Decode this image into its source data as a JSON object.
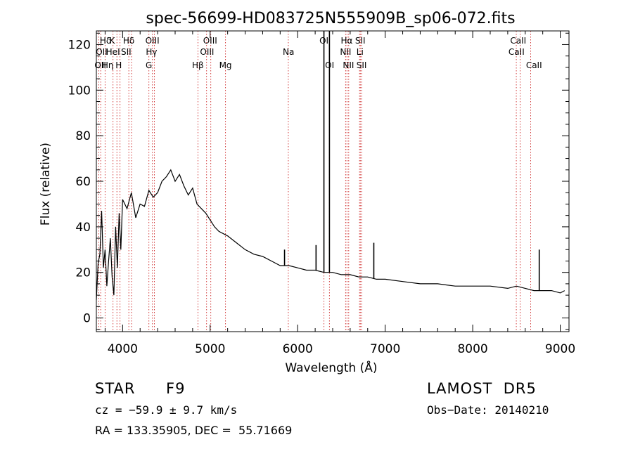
{
  "chart_data": {
    "type": "line",
    "title": "spec-56699-HD083725N555909B_sp06-072.fits",
    "xlabel": "Wavelength (Å)",
    "ylabel": "Flux (relative)",
    "xlim": [
      3700,
      9100
    ],
    "ylim": [
      -6,
      126
    ],
    "x_ticks": [
      4000,
      5000,
      6000,
      7000,
      8000,
      9000
    ],
    "y_ticks": [
      0,
      20,
      40,
      60,
      80,
      100,
      120
    ],
    "grid": false,
    "spectrum": {
      "x": [
        3700,
        3720,
        3740,
        3760,
        3780,
        3800,
        3820,
        3840,
        3860,
        3880,
        3900,
        3920,
        3940,
        3960,
        3980,
        4000,
        4050,
        4100,
        4150,
        4200,
        4250,
        4300,
        4350,
        4400,
        4450,
        4500,
        4550,
        4600,
        4650,
        4700,
        4750,
        4800,
        4850,
        4900,
        4950,
        5000,
        5050,
        5100,
        5200,
        5300,
        5400,
        5500,
        5600,
        5700,
        5800,
        5900,
        6000,
        6100,
        6200,
        6300,
        6400,
        6500,
        6600,
        6700,
        6800,
        6900,
        7000,
        7200,
        7400,
        7600,
        7800,
        8000,
        8200,
        8400,
        8500,
        8600,
        8700,
        8800,
        8900,
        9000,
        9050
      ],
      "y": [
        8,
        24,
        28,
        47,
        22,
        30,
        14,
        25,
        35,
        18,
        10,
        40,
        22,
        46,
        30,
        52,
        48,
        55,
        44,
        50,
        49,
        56,
        53,
        55,
        60,
        62,
        65,
        60,
        63,
        58,
        54,
        57,
        50,
        48,
        46,
        43,
        40,
        38,
        36,
        33,
        30,
        28,
        27,
        25,
        23,
        23,
        22,
        21,
        21,
        20,
        20,
        19,
        19,
        18,
        18,
        17,
        17,
        16,
        15,
        15,
        14,
        14,
        14,
        13,
        14,
        13,
        12,
        12,
        12,
        11,
        12
      ]
    },
    "spikes": [
      {
        "x": 6300,
        "y": 127
      },
      {
        "x": 6363,
        "y": 127
      },
      {
        "x": 6870,
        "y": 33
      },
      {
        "x": 8760,
        "y": 30
      },
      {
        "x": 5850,
        "y": 30
      },
      {
        "x": 6210,
        "y": 32
      }
    ],
    "line_markers": [
      {
        "x": 3727,
        "labels": [
          "OII"
        ]
      },
      {
        "x": 3750,
        "labels": [
          "Hθ",
          "Hη"
        ]
      },
      {
        "x": 3800,
        "labels": [
          "Hδ"
        ]
      },
      {
        "x": 3890,
        "labels": [
          "K",
          "HeI"
        ]
      },
      {
        "x": 3935,
        "labels": [
          "K"
        ]
      },
      {
        "x": 3970,
        "labels": [
          "H"
        ]
      },
      {
        "x": 4071,
        "labels": [
          "SII"
        ]
      },
      {
        "x": 4102,
        "labels": [
          "Hδ"
        ]
      },
      {
        "x": 4300,
        "labels": [
          "G"
        ]
      },
      {
        "x": 4340,
        "labels": [
          "Hγ"
        ]
      },
      {
        "x": 4363,
        "labels": [
          "OIII"
        ]
      },
      {
        "x": 4861,
        "labels": [
          "Hβ"
        ]
      },
      {
        "x": 4959,
        "labels": [
          "OIII"
        ]
      },
      {
        "x": 5007,
        "labels": [
          "OIII"
        ]
      },
      {
        "x": 5175,
        "labels": [
          "Mg"
        ]
      },
      {
        "x": 5893,
        "labels": [
          "Na"
        ]
      },
      {
        "x": 6300,
        "labels": [
          "OI"
        ]
      },
      {
        "x": 6363,
        "labels": [
          "OI"
        ]
      },
      {
        "x": 6548,
        "labels": [
          "NII"
        ]
      },
      {
        "x": 6563,
        "labels": [
          "Hα"
        ]
      },
      {
        "x": 6583,
        "labels": [
          "NII"
        ]
      },
      {
        "x": 6707,
        "labels": [
          "Li"
        ]
      },
      {
        "x": 6716,
        "labels": [
          "SII"
        ]
      },
      {
        "x": 6731,
        "labels": [
          "SII"
        ]
      },
      {
        "x": 8498,
        "labels": [
          "CaII"
        ]
      },
      {
        "x": 8542,
        "labels": [
          "CaII"
        ]
      },
      {
        "x": 8662,
        "labels": [
          "CaII"
        ]
      }
    ],
    "line_labels": [
      {
        "text": "Hδ",
        "x": 3805,
        "row": 0
      },
      {
        "text": "K",
        "x": 3880,
        "row": 0
      },
      {
        "text": "Hδ",
        "x": 4070,
        "row": 0
      },
      {
        "text": "OIII",
        "x": 4340,
        "row": 0
      },
      {
        "text": "OIII",
        "x": 5000,
        "row": 0
      },
      {
        "text": "OI",
        "x": 6300,
        "row": 0
      },
      {
        "text": "Hα",
        "x": 6560,
        "row": 0
      },
      {
        "text": "SII",
        "x": 6715,
        "row": 0
      },
      {
        "text": "CaII",
        "x": 8520,
        "row": 0
      },
      {
        "text": "OII",
        "x": 3760,
        "row": 1
      },
      {
        "text": "HeI",
        "x": 3890,
        "row": 1
      },
      {
        "text": "SII",
        "x": 4040,
        "row": 1
      },
      {
        "text": "Hγ",
        "x": 4330,
        "row": 1
      },
      {
        "text": "OIII",
        "x": 4965,
        "row": 1
      },
      {
        "text": "Na",
        "x": 5895,
        "row": 1
      },
      {
        "text": "NII",
        "x": 6548,
        "row": 1
      },
      {
        "text": "Li",
        "x": 6712,
        "row": 1
      },
      {
        "text": "CaII",
        "x": 8500,
        "row": 1
      },
      {
        "text": "OII",
        "x": 3745,
        "row": 2
      },
      {
        "text": "Hη",
        "x": 3830,
        "row": 2
      },
      {
        "text": "H",
        "x": 3955,
        "row": 2
      },
      {
        "text": "G",
        "x": 4300,
        "row": 2
      },
      {
        "text": "Hβ",
        "x": 4860,
        "row": 2
      },
      {
        "text": "Mg",
        "x": 5175,
        "row": 2
      },
      {
        "text": "OI",
        "x": 6365,
        "row": 2
      },
      {
        "text": "NII",
        "x": 6580,
        "row": 2
      },
      {
        "text": "SII",
        "x": 6730,
        "row": 2
      },
      {
        "text": "CaII",
        "x": 8700,
        "row": 2
      }
    ]
  },
  "info": {
    "object_class": "STAR",
    "subclass": "F9",
    "survey": "LAMOST  DR5",
    "cz": "cz = −59.9 ± 9.7 km/s",
    "obs_date": "Obs−Date: 20140210",
    "coords": "RA = 133.35905, DEC =  55.71669"
  }
}
